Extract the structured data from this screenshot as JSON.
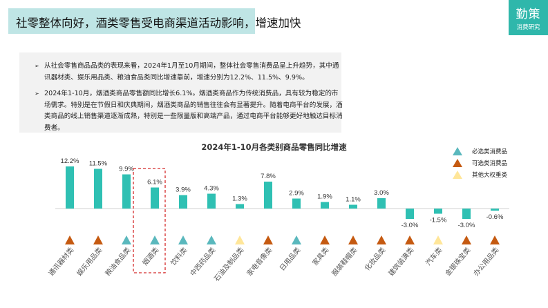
{
  "header": {
    "title": "社零整体向好，酒类零售受电商渠道活动影响，增速加快"
  },
  "logo": {
    "line1": "勤策",
    "line2": "消费研究"
  },
  "summary": {
    "paragraphs": [
      "从社会零售商品品类的表现来看，2024年1月至10月期间，整体社会零售消费品呈上升趋势，其中通讯器材类、娱乐用品类、粮油食品类同比增速靠前，增速分别为12.2%、11.5%、9.9%。",
      "2024年1-10月，烟酒类商品零售额同比增长6.1%。烟酒类商品作为传统消费品，具有较为稳定的市场需求。特别是在节假日和庆典期间，烟酒类商品的销售往往会有显著提升。随着电商平台的发展，酒类商品的线上销售渠道逐渐成熟，特别是一些限量版和高端产品，通过电商平台能够更好地触达目标消费者。"
    ],
    "bullet": "➢"
  },
  "chart_data": {
    "type": "bar",
    "title": "2024年1-10月各类别商品零售同比增速",
    "categories": [
      "通讯器材类",
      "娱乐用品类",
      "粮油食品类",
      "烟酒类",
      "饮料类",
      "中西药品类",
      "石油及制品类",
      "家电音像类",
      "日用品类",
      "家具类",
      "服装鞋帽类",
      "化妆品类",
      "建筑装潢类",
      "汽车类",
      "金银珠宝类",
      "办公用品类"
    ],
    "values": [
      12.2,
      11.5,
      9.9,
      6.1,
      3.9,
      4.3,
      1.3,
      7.8,
      2.9,
      1.9,
      1.1,
      3.0,
      -3.0,
      -1.5,
      -3.0,
      -0.6
    ],
    "value_labels": [
      "12.2%",
      "11.5%",
      "9.9%",
      "6.1%",
      "3.9%",
      "4.3%",
      "1.3%",
      "7.8%",
      "2.9%",
      "1.9%",
      "1.1%",
      "3.0%",
      "-3.0%",
      "-1.5%",
      "-3.0%",
      "-0.6%"
    ],
    "groups": [
      "optional",
      "optional",
      "essential",
      "essential",
      "essential",
      "essential",
      "other",
      "optional",
      "essential",
      "optional",
      "optional",
      "optional",
      "optional",
      "other",
      "optional",
      "optional"
    ],
    "legend": [
      {
        "key": "essential",
        "name": "必选类消费品",
        "color": "#5ab8bd"
      },
      {
        "key": "optional",
        "name": "可选类消费品",
        "color": "#c55a11"
      },
      {
        "key": "other",
        "name": "其他大权重类",
        "color": "#ffe699"
      }
    ],
    "highlight": "烟酒类",
    "bar_color": "#2fc0b3",
    "legend_position": "top-right",
    "grid": false
  }
}
